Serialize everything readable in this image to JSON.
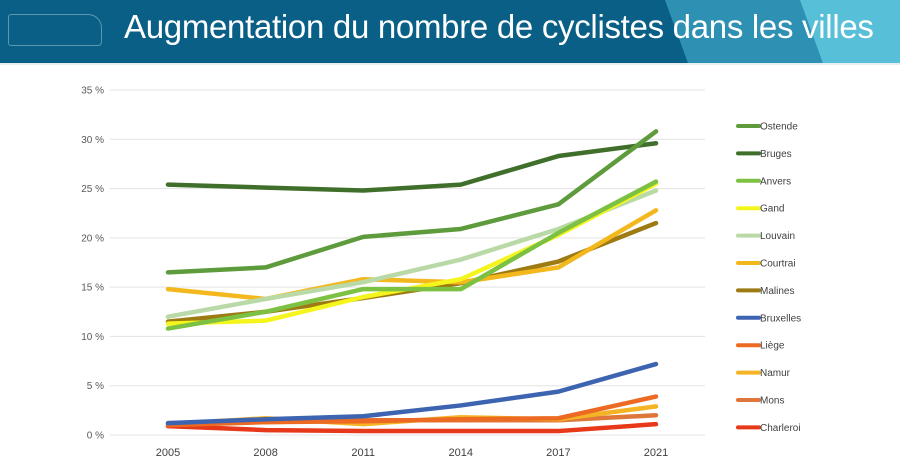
{
  "header": {
    "title": "Augmentation du nombre de cyclistes dans les villes"
  },
  "chart_data": {
    "type": "line",
    "title": "",
    "xlabel": "",
    "ylabel": "",
    "x": [
      "2005",
      "2008",
      "2011",
      "2014",
      "2017",
      "2021"
    ],
    "ylim": [
      0,
      35
    ],
    "yticks": [
      "0 %",
      "5 %",
      "10 %",
      "15 %",
      "20 %",
      "25 %",
      "30 %",
      "35 %"
    ],
    "grid": true,
    "legend": "right",
    "series": [
      {
        "name": "Ostende",
        "color": "#5e9b3c",
        "values": [
          16.5,
          17.0,
          20.1,
          20.9,
          23.4,
          30.8
        ]
      },
      {
        "name": "Bruges",
        "color": "#3f6f2a",
        "values": [
          25.4,
          25.1,
          24.8,
          25.4,
          28.3,
          29.6
        ]
      },
      {
        "name": "Anvers",
        "color": "#7cc142",
        "values": [
          10.8,
          12.5,
          14.8,
          14.8,
          20.5,
          25.7
        ]
      },
      {
        "name": "Gand",
        "color": "#f5f51e",
        "values": [
          11.3,
          11.6,
          14.0,
          15.8,
          20.3,
          25.5
        ]
      },
      {
        "name": "Louvain",
        "color": "#b9d9a6",
        "values": [
          12.0,
          13.8,
          15.5,
          17.8,
          20.9,
          24.8
        ]
      },
      {
        "name": "Courtrai",
        "color": "#f4b81f",
        "values": [
          14.8,
          13.8,
          15.8,
          15.5,
          17.0,
          22.8
        ]
      },
      {
        "name": "Malines",
        "color": "#9e7b12",
        "values": [
          11.5,
          12.5,
          13.9,
          15.4,
          17.6,
          21.5
        ]
      },
      {
        "name": "Bruxelles",
        "color": "#3d64b0",
        "values": [
          1.2,
          1.6,
          1.9,
          3.0,
          4.4,
          7.2
        ]
      },
      {
        "name": "Liège",
        "color": "#ec6a22",
        "values": [
          1.0,
          1.3,
          1.4,
          1.6,
          1.7,
          3.9
        ]
      },
      {
        "name": "Namur",
        "color": "#f5b425",
        "values": [
          1.1,
          1.7,
          1.1,
          1.8,
          1.6,
          2.9
        ]
      },
      {
        "name": "Mons",
        "color": "#e0773a",
        "values": [
          1.2,
          1.3,
          1.5,
          1.5,
          1.5,
          2.0
        ]
      },
      {
        "name": "Charleroi",
        "color": "#e8381a",
        "values": [
          0.9,
          0.5,
          0.4,
          0.4,
          0.4,
          1.1
        ]
      }
    ]
  }
}
